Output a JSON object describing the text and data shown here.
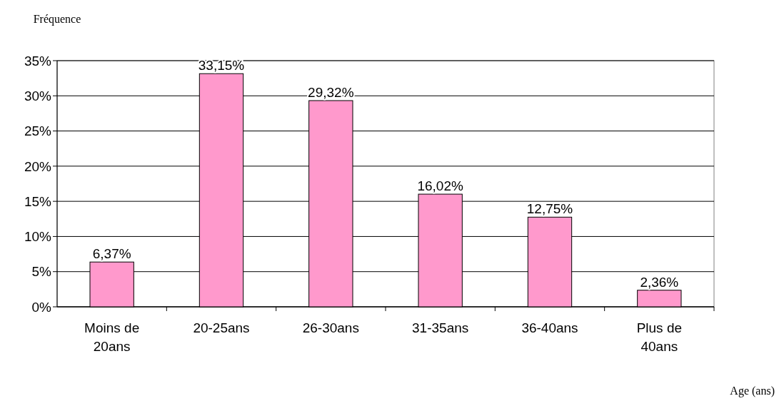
{
  "chart_data": {
    "type": "bar",
    "ylabel": "Fréquence",
    "xlabel": "Age (ans)",
    "categories": [
      "Moins de 20ans",
      "20-25ans",
      "26-30ans",
      "31-35ans",
      "36-40ans",
      "Plus de 40ans"
    ],
    "values": [
      6.37,
      33.15,
      29.32,
      16.02,
      12.75,
      2.36
    ],
    "value_labels": [
      "6,37%",
      "33,15%",
      "29,32%",
      "16,02%",
      "12,75%",
      "2,36%"
    ],
    "color": "#ff99cc",
    "ylim": [
      0,
      35
    ],
    "yticks": [
      {
        "value": 0,
        "label": "0%"
      },
      {
        "value": 5,
        "label": "5%"
      },
      {
        "value": 10,
        "label": "10%"
      },
      {
        "value": 15,
        "label": "15%"
      },
      {
        "value": 20,
        "label": "20%"
      },
      {
        "value": 25,
        "label": "25%"
      },
      {
        "value": 30,
        "label": "30%"
      },
      {
        "value": 35,
        "label": "35%"
      }
    ],
    "grid": "y"
  }
}
